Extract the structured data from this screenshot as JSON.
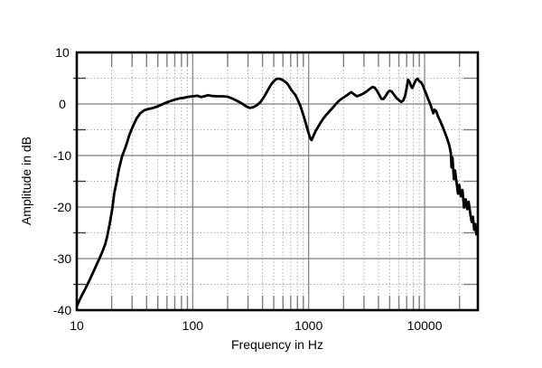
{
  "figure": {
    "background": "#ffffff"
  },
  "chart_data": {
    "type": "line",
    "title": "",
    "xlabel": "Frequency in Hz",
    "ylabel": "Amplitude in dB",
    "x_scale": "log",
    "xlim": [
      10,
      28800
    ],
    "ylim": [
      -40,
      10
    ],
    "grid": {
      "major": "solid",
      "minor": "dotted",
      "legend": "none"
    },
    "x_major_ticks": [
      10,
      100,
      1000,
      10000
    ],
    "x_major_tick_labels": [
      "10",
      "100",
      "1000",
      "10000"
    ],
    "x_minor_ticks": [
      20,
      30,
      40,
      50,
      60,
      70,
      80,
      90,
      200,
      300,
      400,
      500,
      600,
      700,
      800,
      900,
      2000,
      3000,
      4000,
      5000,
      6000,
      7000,
      8000,
      9000,
      20000
    ],
    "y_major_ticks": [
      10,
      0,
      -10,
      -20,
      -30,
      -40
    ],
    "y_major_tick_labels": [
      "10",
      "0",
      "-10",
      "-20",
      "-30",
      "-40"
    ],
    "y_minor_ticks": [
      5,
      -5,
      -15,
      -25,
      -35
    ],
    "colors": {
      "curve": "#000000",
      "frame": "#000000",
      "major_grid": "#7d7d7d",
      "minor_grid": "#9a9a9a",
      "edge_tick": "#7d7d7d",
      "left_minor_tick": "#3a3a3a",
      "text": "#000000",
      "background": "#ffffff"
    },
    "series": [
      {
        "name": "amplitude-response",
        "points": [
          [
            10,
            -39.3
          ],
          [
            10.5,
            -38.2
          ],
          [
            11.2,
            -36.9
          ],
          [
            12,
            -35.6
          ],
          [
            12.8,
            -34.3
          ],
          [
            13.7,
            -32.9
          ],
          [
            14.8,
            -31.2
          ],
          [
            15.8,
            -29.8
          ],
          [
            16.8,
            -28.4
          ],
          [
            17.6,
            -27.2
          ],
          [
            18.2,
            -25.9
          ],
          [
            18.7,
            -24.6
          ],
          [
            19.2,
            -23.3
          ],
          [
            19.7,
            -21.9
          ],
          [
            20.3,
            -20.1
          ],
          [
            21,
            -17.4
          ],
          [
            22.1,
            -15
          ],
          [
            23.1,
            -12.6
          ],
          [
            24.5,
            -10.3
          ],
          [
            26.7,
            -8
          ],
          [
            28.4,
            -6
          ],
          [
            30.4,
            -4.4
          ],
          [
            32.8,
            -2.8
          ],
          [
            35.3,
            -1.8
          ],
          [
            38.4,
            -1.2
          ],
          [
            42,
            -0.95
          ],
          [
            45,
            -0.8
          ],
          [
            48,
            -0.6
          ],
          [
            52,
            -0.3
          ],
          [
            56,
            0.05
          ],
          [
            62,
            0.45
          ],
          [
            70,
            0.85
          ],
          [
            78,
            1.1
          ],
          [
            84,
            1.2
          ],
          [
            90,
            1.35
          ],
          [
            100,
            1.5
          ],
          [
            110,
            1.6
          ],
          [
            118,
            1.35
          ],
          [
            126,
            1.5
          ],
          [
            135,
            1.7
          ],
          [
            148,
            1.55
          ],
          [
            165,
            1.5
          ],
          [
            182,
            1.5
          ],
          [
            200,
            1.4
          ],
          [
            220,
            1.05
          ],
          [
            242,
            0.6
          ],
          [
            265,
            0.1
          ],
          [
            290,
            -0.5
          ],
          [
            310,
            -0.75
          ],
          [
            330,
            -0.65
          ],
          [
            355,
            -0.3
          ],
          [
            385,
            0.4
          ],
          [
            415,
            1.5
          ],
          [
            445,
            2.7
          ],
          [
            475,
            3.8
          ],
          [
            505,
            4.5
          ],
          [
            530,
            4.9
          ],
          [
            560,
            4.9
          ],
          [
            590,
            4.7
          ],
          [
            620,
            4.4
          ],
          [
            650,
            4
          ],
          [
            680,
            3.4
          ],
          [
            710,
            2.7
          ],
          [
            740,
            2.2
          ],
          [
            770,
            1.7
          ],
          [
            805,
            0.8
          ],
          [
            850,
            -0.4
          ],
          [
            890,
            -1.8
          ],
          [
            930,
            -3.2
          ],
          [
            965,
            -4.5
          ],
          [
            1000,
            -5.7
          ],
          [
            1030,
            -6.6
          ],
          [
            1060,
            -7
          ],
          [
            1100,
            -6.2
          ],
          [
            1150,
            -5.2
          ],
          [
            1210,
            -4.4
          ],
          [
            1270,
            -3.6
          ],
          [
            1340,
            -2.8
          ],
          [
            1420,
            -2.1
          ],
          [
            1500,
            -1.5
          ],
          [
            1590,
            -0.9
          ],
          [
            1690,
            -0.2
          ],
          [
            1800,
            0.5
          ],
          [
            1920,
            1
          ],
          [
            2050,
            1.4
          ],
          [
            2200,
            1.9
          ],
          [
            2330,
            2.3
          ],
          [
            2460,
            1.9
          ],
          [
            2600,
            1.5
          ],
          [
            2760,
            1.7
          ],
          [
            2950,
            2
          ],
          [
            3150,
            2.4
          ],
          [
            3350,
            2.9
          ],
          [
            3550,
            3.3
          ],
          [
            3700,
            3.2
          ],
          [
            3850,
            2.7
          ],
          [
            4050,
            1.8
          ],
          [
            4250,
            1
          ],
          [
            4400,
            0.95
          ],
          [
            4600,
            1.5
          ],
          [
            4800,
            2.2
          ],
          [
            5000,
            2.6
          ],
          [
            5200,
            2.4
          ],
          [
            5450,
            1.8
          ],
          [
            5700,
            1.2
          ],
          [
            6000,
            0.75
          ],
          [
            6300,
            0.4
          ],
          [
            6550,
            0.7
          ],
          [
            6800,
            1.6
          ],
          [
            7000,
            3.1
          ],
          [
            7200,
            4.7
          ],
          [
            7450,
            4.2
          ],
          [
            7650,
            3.4
          ],
          [
            7850,
            3.1
          ],
          [
            8150,
            4
          ],
          [
            8450,
            4.7
          ],
          [
            8700,
            4.9
          ],
          [
            9000,
            4.4
          ],
          [
            9350,
            4.2
          ],
          [
            9700,
            3.5
          ],
          [
            10000,
            2.7
          ],
          [
            10350,
            1.9
          ],
          [
            10700,
            1
          ],
          [
            11100,
            0.2
          ],
          [
            11500,
            -0.8
          ],
          [
            11900,
            -1.8
          ],
          [
            12200,
            -1.1
          ],
          [
            12600,
            -1.4
          ],
          [
            13100,
            -2.5
          ],
          [
            13700,
            -3.4
          ],
          [
            14300,
            -4.4
          ],
          [
            15000,
            -5.6
          ],
          [
            15700,
            -6.8
          ],
          [
            16300,
            -8
          ],
          [
            16800,
            -9.4
          ],
          [
            17100,
            -12.3
          ],
          [
            17400,
            -10.4
          ],
          [
            17900,
            -14.6
          ],
          [
            18300,
            -12.9
          ],
          [
            18900,
            -15.3
          ],
          [
            19400,
            -17.4
          ],
          [
            19900,
            -15.7
          ],
          [
            20500,
            -17.9
          ],
          [
            21200,
            -16.7
          ],
          [
            21900,
            -20.1
          ],
          [
            22600,
            -18.5
          ],
          [
            23300,
            -20.4
          ],
          [
            24000,
            -19
          ],
          [
            24800,
            -21.4
          ],
          [
            25500,
            -22.9
          ],
          [
            26100,
            -21.9
          ],
          [
            26800,
            -24.4
          ],
          [
            27400,
            -23.3
          ],
          [
            28000,
            -25.3
          ],
          [
            28700,
            -24.4
          ]
        ]
      }
    ]
  }
}
